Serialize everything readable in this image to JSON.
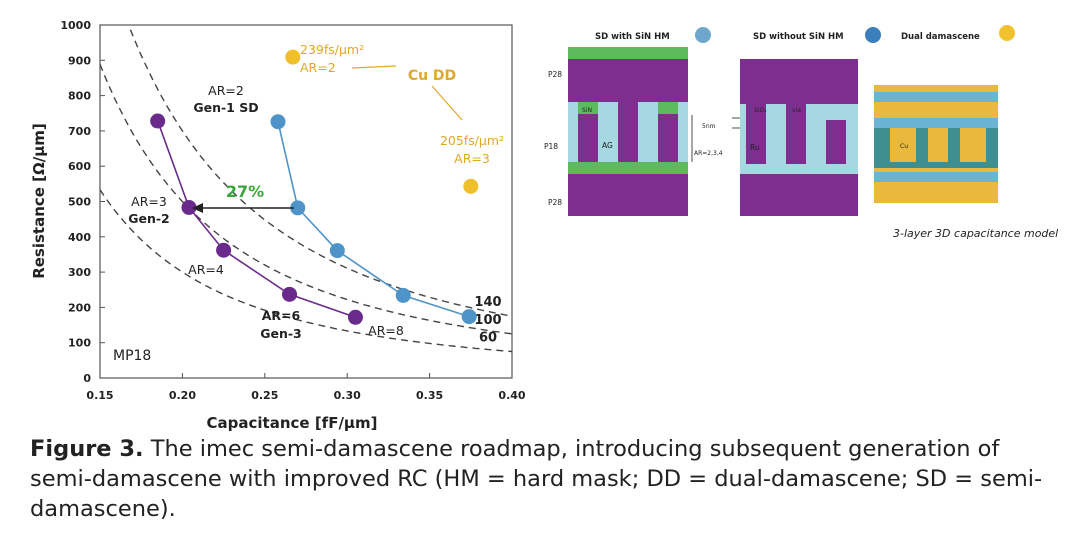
{
  "chart_data": {
    "type": "scatter",
    "xlabel": "Capacitance [fF/μm]",
    "ylabel": "Resistance [Ω/μm]",
    "xlim": [
      0.15,
      0.4
    ],
    "ylim": [
      0,
      1000
    ],
    "xticks": [
      "0.15",
      "0.20",
      "0.25",
      "0.30",
      "0.35",
      "0.40"
    ],
    "yticks": [
      "0",
      "100",
      "200",
      "300",
      "400",
      "500",
      "600",
      "700",
      "800",
      "900",
      "1000"
    ],
    "grid": false,
    "panel_label": "MP18",
    "series": [
      {
        "color": "#6a2a8c",
        "x": [
          0.185,
          0.204,
          0.225,
          0.265,
          0.305
        ],
        "y": [
          728,
          483,
          362,
          237,
          172
        ]
      },
      {
        "color": "#4f94c8",
        "x": [
          0.258,
          0.27,
          0.294,
          0.334,
          0.374
        ],
        "y": [
          726,
          482,
          361,
          234,
          174
        ]
      },
      {
        "color": "#f0c02c",
        "x": [
          0.267,
          0.375
        ],
        "y": [
          909,
          543
        ]
      }
    ],
    "rc_curves": [
      {
        "label": "140",
        "k": 28
      },
      {
        "label": "100",
        "k": 20
      },
      {
        "label": "60",
        "k": 12
      }
    ],
    "annotations": {
      "gen1_ar": "AR=2",
      "gen1_name": "Gen-1 SD",
      "gen2_ar": "AR=3",
      "gen2_name": "Gen-2",
      "ar4": "AR=4",
      "gen3_ar": "AR=6",
      "gen3_name": "Gen-3",
      "ar8": "AR=8",
      "improvement": "27%",
      "cudd_a_value": "239fs/μm²",
      "cudd_a_ar": "AR=2",
      "cudd_label": "Cu DD",
      "cudd_b_value": "205fs/μm²",
      "cudd_b_ar": "AR=3"
    }
  },
  "diagram": {
    "legend_sd_hm": "SD with SiN HM",
    "legend_sd_nohm": "SD without SiN HM",
    "legend_dd": "Dual damascene",
    "legend_colors": {
      "sd_hm": "#6ea6cc",
      "sd_nohm": "#3b7fbd",
      "dd": "#f2c12e"
    },
    "layer_p28_top": "P28",
    "layer_p18": "P18",
    "layer_p28_bottom": "P28",
    "label_sin": "SiN",
    "label_ag": "AG",
    "label_sio2": "SiO₂",
    "label_via": "via",
    "label_ru": "Ru",
    "label_5nm": "5nm",
    "label_ar_range": "AR=2,3,4",
    "label_cu": "Cu",
    "model_caption": "3-layer 3D capacitance model",
    "colors": {
      "metal": "#7e2e8e",
      "hm": "#5dbb5d",
      "dielectric": "#a6d8e2",
      "dd_metal": "#e8b93c",
      "dd_liner": "#3f8f8f"
    }
  },
  "caption": {
    "label": "Figure 3.",
    "text": " The imec semi-damascene roadmap, introducing subsequent generation of semi-damascene with improved RC (HM = hard mask; DD = dual-damascene; SD = semi-damascene)."
  }
}
